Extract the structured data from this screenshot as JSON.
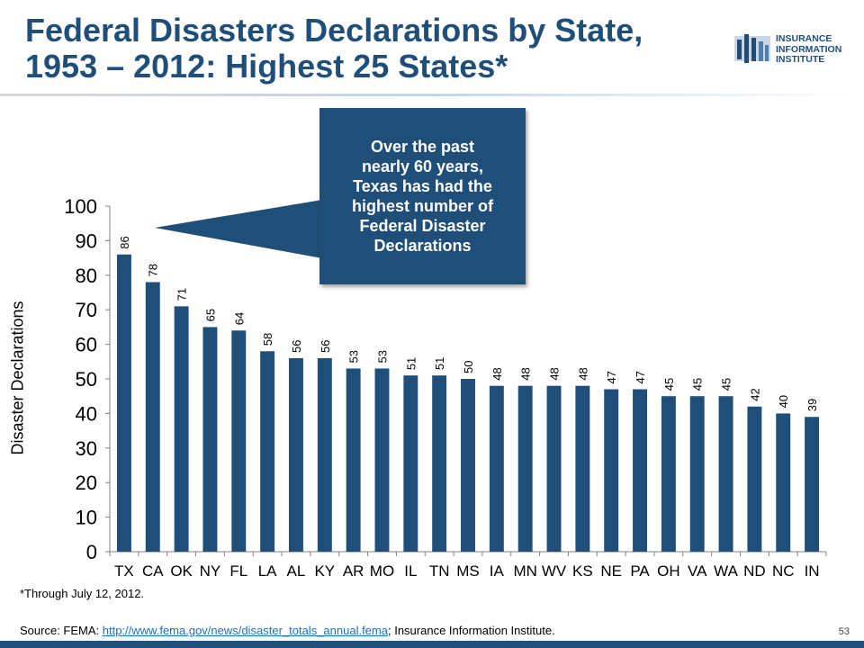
{
  "header": {
    "title_line1": "Federal Disasters Declarations by State,",
    "title_line2": "1953 – 2012: Highest 25 States*",
    "logo_line1": "INSURANCE",
    "logo_line2": "INFORMATION",
    "logo_line3": "INSTITUTE"
  },
  "callout": {
    "lines": [
      "Over the past",
      "nearly 60 years,",
      "Texas has had the",
      "highest number of",
      "Federal Disaster",
      "Declarations"
    ]
  },
  "footer": {
    "footnote": "*Through July 12, 2012.",
    "source_prefix": "Source:  FEMA: ",
    "source_link": "http://www.fema.gov/news/disaster_totals_annual.fema",
    "source_suffix": "; Insurance Information Institute.",
    "page_number": "53"
  },
  "colors": {
    "bar": "#1f4e79",
    "title": "#1f4e79",
    "callout_bg": "#1f4e79"
  },
  "chart_data": {
    "type": "bar",
    "title": "",
    "xlabel": "",
    "ylabel": "Disaster Declarations",
    "ylim": [
      0,
      100
    ],
    "yticks": [
      0,
      10,
      20,
      30,
      40,
      50,
      60,
      70,
      80,
      90,
      100
    ],
    "grid": false,
    "categories": [
      "TX",
      "CA",
      "OK",
      "NY",
      "FL",
      "LA",
      "AL",
      "KY",
      "AR",
      "MO",
      "IL",
      "TN",
      "MS",
      "IA",
      "MN",
      "WV",
      "KS",
      "NE",
      "PA",
      "OH",
      "VA",
      "WA",
      "ND",
      "NC",
      "IN"
    ],
    "values": [
      86,
      78,
      71,
      65,
      64,
      58,
      56,
      56,
      53,
      53,
      51,
      51,
      50,
      48,
      48,
      48,
      48,
      47,
      47,
      45,
      45,
      45,
      42,
      40,
      39
    ],
    "data_labels": true
  }
}
